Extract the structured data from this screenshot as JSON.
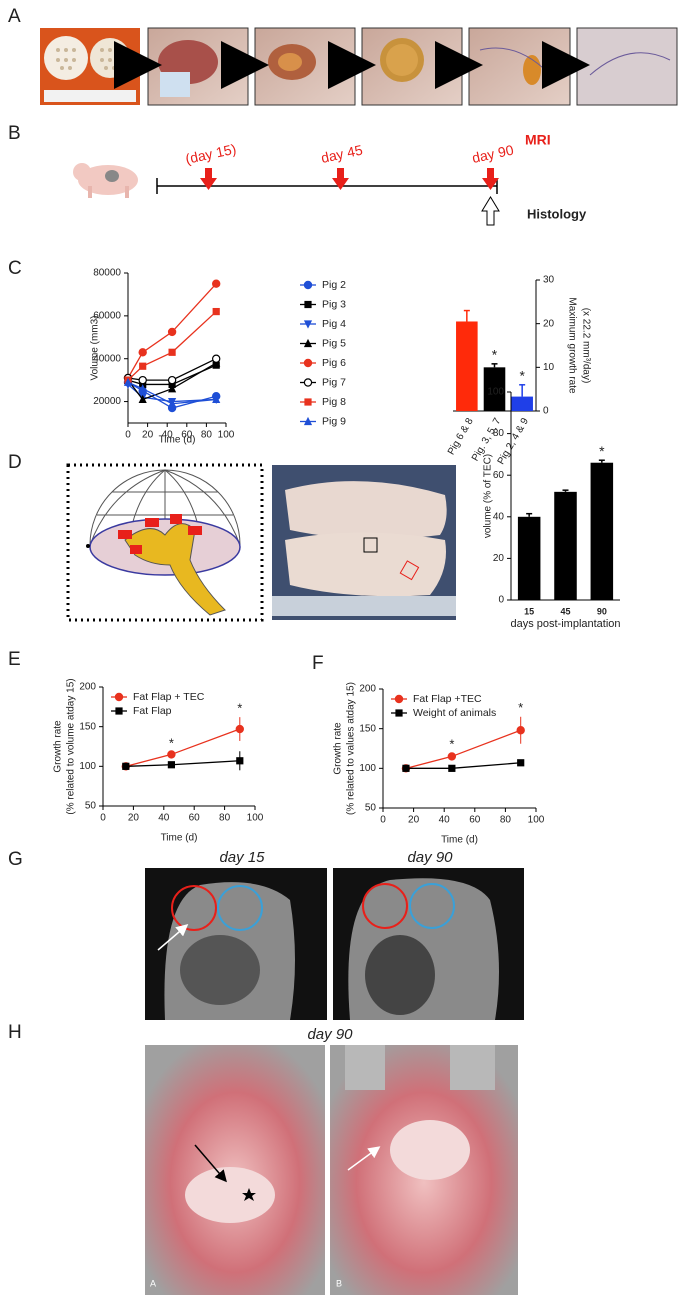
{
  "panels": [
    "A",
    "B",
    "C",
    "D",
    "E",
    "F",
    "G",
    "H"
  ],
  "timeline": {
    "events": [
      "(day 15)",
      "day 45",
      "day 90"
    ],
    "mri": "MRI",
    "histology": "Histology"
  },
  "chart_data": [
    {
      "type": "line",
      "xlabel": "Time (d)",
      "ylabel": [
        "Volume (mm3)"
      ],
      "x": [
        0,
        15,
        45,
        90
      ],
      "xlim": [
        0,
        100
      ],
      "xticks": [
        0,
        20,
        40,
        60,
        80,
        100
      ],
      "ylim": [
        10000,
        80000
      ],
      "yticks": [
        20000,
        40000,
        60000,
        80000
      ],
      "legend": "right",
      "series": [
        {
          "name": "Pig 2",
          "color": "#1f4fd6",
          "marker": "circle",
          "values": [
            29000,
            25000,
            17000,
            22500
          ]
        },
        {
          "name": "Pig 3",
          "color": "#000000",
          "marker": "square",
          "values": [
            30000,
            28000,
            28000,
            37000
          ]
        },
        {
          "name": "Pig 4",
          "color": "#1f4fd6",
          "marker": "triangle-down",
          "values": [
            28000,
            22000,
            20000,
            21000
          ]
        },
        {
          "name": "Pig 5",
          "color": "#000000",
          "marker": "triangle",
          "values": [
            30000,
            21000,
            26000,
            38000
          ]
        },
        {
          "name": "Pig 6",
          "color": "#e8321e",
          "marker": "circle",
          "values": [
            31000,
            43000,
            52500,
            75000
          ]
        },
        {
          "name": "Pig 7",
          "color": "#000000",
          "marker": "circle-open",
          "values": [
            31000,
            30000,
            30000,
            40000
          ]
        },
        {
          "name": "Pig 8",
          "color": "#e8321e",
          "marker": "square",
          "values": [
            30000,
            36500,
            43000,
            62000
          ]
        },
        {
          "name": "Pig 9",
          "color": "#1f4fd6",
          "marker": "triangle",
          "values": [
            29000,
            26000,
            19000,
            21000
          ]
        }
      ]
    },
    {
      "type": "bar",
      "ylabel": [
        "Maximum growth rate",
        "(x 22.2 mm³/day)"
      ],
      "y_axis_side": "right",
      "categories": [
        "Pig 6 & 8",
        "Pig. 3, 5, 7",
        "Pig 2, 4 & 9"
      ],
      "values": [
        20.5,
        10,
        3.3
      ],
      "errors": [
        2.5,
        0.8,
        2.7
      ],
      "colors": [
        "#ff2a0a",
        "#000000",
        "#1f3fe8"
      ],
      "significance": [
        null,
        "*",
        "*"
      ],
      "ylim": [
        0,
        30
      ],
      "yticks": [
        0,
        10,
        20,
        30
      ]
    },
    {
      "type": "bar",
      "ylabel": [
        "volume (% of TEC)"
      ],
      "xlabel": "days post-implantation",
      "categories": [
        "15",
        "45",
        "90"
      ],
      "values": [
        40,
        52,
        66
      ],
      "errors": [
        1.5,
        0.8,
        1.2
      ],
      "colors": [
        "#000000",
        "#000000",
        "#000000"
      ],
      "significance": [
        null,
        null,
        "*"
      ],
      "ylim": [
        0,
        100
      ],
      "yticks": [
        0,
        20,
        40,
        60,
        80,
        100
      ]
    },
    {
      "type": "line",
      "xlabel": "Time (d)",
      "ylabel": [
        "Growth rate",
        "(% related to volume atday 15)"
      ],
      "x": [
        15,
        45,
        90
      ],
      "xlim": [
        0,
        100
      ],
      "xticks": [
        0,
        20,
        40,
        60,
        80,
        100
      ],
      "ylim": [
        50,
        200
      ],
      "yticks": [
        50,
        100,
        150,
        200
      ],
      "legend": "upper left",
      "series": [
        {
          "name": "Fat Flap + TEC",
          "color": "#e8321e",
          "marker": "circle",
          "values": [
            100,
            115,
            147
          ],
          "errors": [
            0,
            3,
            15
          ],
          "significance": [
            null,
            "*",
            "*"
          ]
        },
        {
          "name": "Fat Flap",
          "color": "#000000",
          "marker": "square",
          "values": [
            100,
            102,
            107
          ],
          "errors": [
            0,
            1,
            12
          ]
        }
      ]
    },
    {
      "type": "line",
      "xlabel": "Time (d)",
      "ylabel": [
        "Growth rate",
        "(% related to values atday 15)"
      ],
      "x": [
        15,
        45,
        90
      ],
      "xlim": [
        0,
        100
      ],
      "xticks": [
        0,
        20,
        40,
        60,
        80,
        100
      ],
      "ylim": [
        50,
        200
      ],
      "yticks": [
        50,
        100,
        150,
        200
      ],
      "legend": "upper left",
      "series": [
        {
          "name": "Fat Flap +TEC",
          "color": "#e8321e",
          "marker": "circle",
          "values": [
            100,
            115,
            148
          ],
          "errors": [
            0,
            4,
            17
          ],
          "significance": [
            null,
            "*",
            "*"
          ]
        },
        {
          "name": "Weight of animals",
          "color": "#000000",
          "marker": "square",
          "values": [
            100,
            100,
            107
          ],
          "errors": [
            0,
            1,
            2
          ]
        }
      ]
    }
  ],
  "mri": {
    "titles": [
      "day 15",
      "day 90"
    ]
  },
  "surgery": {
    "title": "day 90",
    "photo_labels": [
      "A",
      "B"
    ]
  }
}
